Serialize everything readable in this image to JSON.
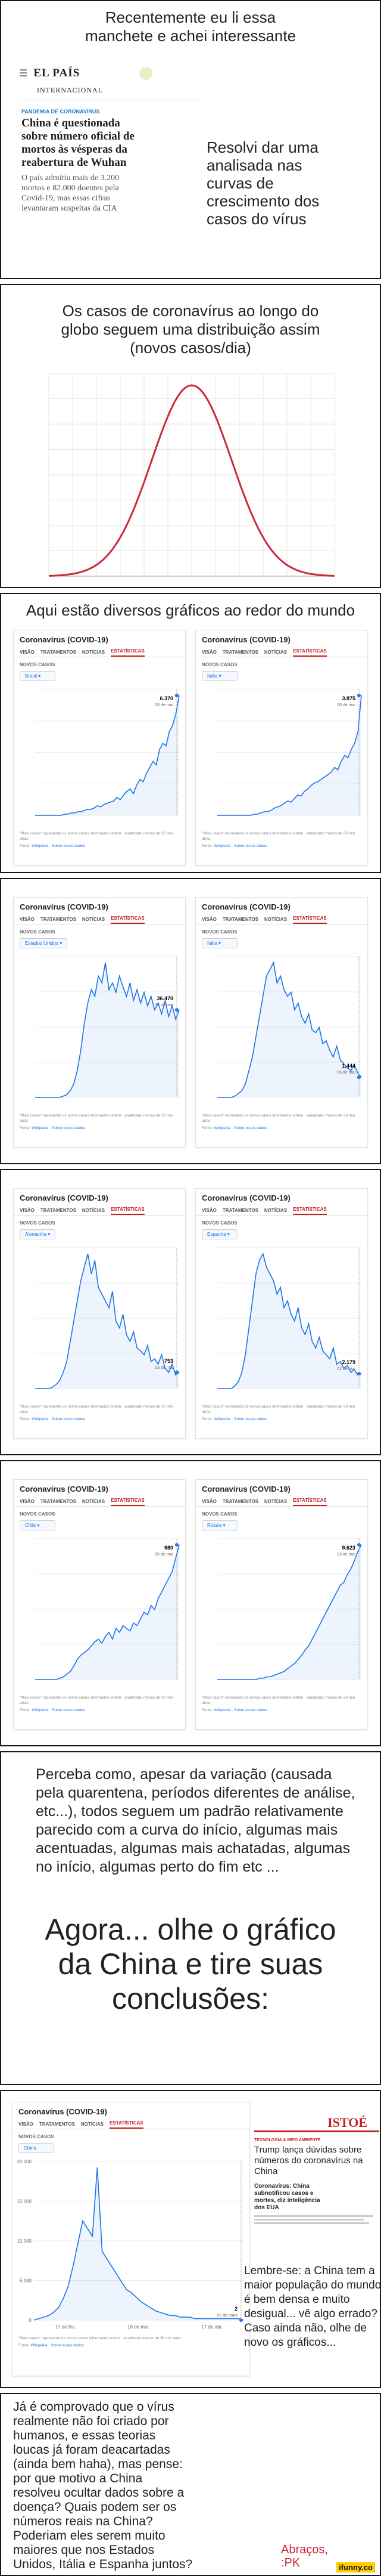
{
  "panel1": {
    "caption_line1": "Recentemente eu li essa",
    "caption_line2": "manchete e achei interessante",
    "logo": "EL PAÍS",
    "edition": "INTERNACIONAL",
    "kicker": "PANDEMIA DE CORONAVÍRUS",
    "headline_lines": [
      "China é questionada",
      "sobre número oficial de",
      "mortos às vésperas da",
      "reabertura de Wuhan"
    ],
    "body_lines": [
      "O país admitiu mais de 3.200",
      "mortos e 82.000 doentes pela",
      "Covid-19, mas essas cifras",
      "levantaram suspeitas da CIA"
    ],
    "aside_lines": [
      "Resolvi dar uma",
      "analisada nas",
      "curvas de",
      "crescimento dos",
      "casos do vírus"
    ]
  },
  "panel2": {
    "caption_lines": [
      "Os casos de coronavírus ao longo do",
      "globo seguem uma distribuição assim",
      "(novos casos/dia)"
    ],
    "chart_data": {
      "type": "line",
      "shape": "bell curve",
      "grid": true
    }
  },
  "panel3": {
    "caption": "Aqui estão diversos gráficos ao redor do mundo"
  },
  "card_common": {
    "title": "Coronavírus (COVID-19)",
    "tabs": [
      "VISÃO",
      "TRATAMENTOS",
      "NOTÍCIAS",
      "ESTATÍSTICAS"
    ],
    "section": "NOVOS CASOS",
    "footnote": "\"Mais casos\" representa os novos casos informados ontem · atualizado menos de 30 min atrás",
    "source_label": "Fonte:",
    "source_link": "Wikipedia",
    "about_link": "Sobre esses dados"
  },
  "cards": [
    {
      "country": "Brasil",
      "annot_value": "6.370",
      "annot_date": "06 de mai",
      "color": "#1a73e8",
      "profile": [
        0,
        0,
        0,
        0,
        0,
        0,
        0,
        0,
        0,
        1,
        1,
        2,
        2,
        3,
        3,
        4,
        5,
        5,
        6,
        8,
        7,
        9,
        10,
        11,
        12,
        15,
        13,
        17,
        20,
        22,
        18,
        25,
        30,
        28,
        35,
        40,
        45,
        42,
        55,
        60,
        58,
        70,
        75,
        85,
        100
      ]
    },
    {
      "country": "Índia",
      "annot_value": "3.875",
      "annot_date": "06 de mai",
      "color": "#1a73e8",
      "profile": [
        0,
        0,
        0,
        0,
        0,
        0,
        0,
        0,
        0,
        0,
        0,
        1,
        1,
        2,
        3,
        3,
        4,
        6,
        7,
        8,
        10,
        12,
        11,
        14,
        17,
        16,
        20,
        22,
        25,
        27,
        28,
        30,
        32,
        34,
        36,
        40,
        38,
        45,
        50,
        48,
        55,
        60,
        70,
        100
      ]
    },
    {
      "country": "Estados Unidos",
      "annot_value": "36.470",
      "annot_date": "22 de mai",
      "color": "#1a73e8",
      "profile": [
        0,
        0,
        0,
        0,
        0,
        0,
        0,
        0,
        1,
        2,
        5,
        10,
        20,
        35,
        55,
        70,
        80,
        75,
        90,
        85,
        100,
        80,
        85,
        78,
        90,
        82,
        75,
        85,
        72,
        80,
        70,
        78,
        68,
        75,
        65,
        70,
        62,
        72,
        60,
        68,
        58,
        65
      ]
    },
    {
      "country": "Itália",
      "annot_value": "1.444",
      "annot_date": "06 de mai",
      "color": "#1a73e8",
      "profile": [
        0,
        0,
        0,
        0,
        0,
        1,
        3,
        5,
        10,
        20,
        30,
        45,
        60,
        75,
        90,
        95,
        100,
        85,
        90,
        80,
        75,
        78,
        65,
        70,
        60,
        55,
        62,
        50,
        48,
        52,
        40,
        42,
        35,
        30,
        38,
        28,
        25,
        22,
        20,
        24,
        18,
        15
      ]
    },
    {
      "country": "Alemanha",
      "annot_value": "753",
      "annot_date": "03 de mai",
      "color": "#1a73e8",
      "profile": [
        0,
        0,
        0,
        0,
        0,
        1,
        3,
        6,
        12,
        20,
        35,
        50,
        65,
        80,
        90,
        100,
        85,
        95,
        75,
        70,
        65,
        60,
        72,
        50,
        45,
        55,
        40,
        35,
        42,
        30,
        28,
        25,
        32,
        20,
        22,
        18,
        25,
        15,
        12,
        18,
        10,
        12
      ]
    },
    {
      "country": "Espanha",
      "annot_value": "2.179",
      "annot_date": "02 de mai",
      "color": "#1a73e8",
      "profile": [
        0,
        0,
        0,
        0,
        0,
        2,
        5,
        12,
        25,
        45,
        65,
        85,
        95,
        100,
        90,
        85,
        80,
        70,
        75,
        60,
        65,
        55,
        50,
        60,
        45,
        40,
        48,
        35,
        30,
        38,
        28,
        25,
        22,
        30,
        18,
        20,
        15,
        17,
        12,
        14,
        10,
        11
      ]
    },
    {
      "country": "Chile",
      "annot_value": "980",
      "annot_date": "06 de mai",
      "color": "#1a73e8",
      "profile": [
        0,
        0,
        0,
        0,
        0,
        0,
        0,
        1,
        2,
        4,
        6,
        10,
        15,
        18,
        20,
        22,
        25,
        28,
        30,
        27,
        32,
        35,
        30,
        38,
        35,
        40,
        38,
        36,
        42,
        40,
        45,
        50,
        48,
        55,
        52,
        60,
        65,
        70,
        75,
        80,
        90,
        100
      ]
    },
    {
      "country": "Rússia",
      "annot_value": "9.623",
      "annot_date": "03 de mai",
      "color": "#1a73e8",
      "profile": [
        0,
        0,
        0,
        0,
        0,
        0,
        0,
        0,
        0,
        0,
        0,
        0,
        1,
        1,
        2,
        2,
        3,
        4,
        5,
        6,
        8,
        10,
        12,
        15,
        18,
        22,
        25,
        30,
        35,
        40,
        45,
        50,
        55,
        60,
        65,
        70,
        72,
        78,
        82,
        88,
        95,
        100
      ]
    }
  ],
  "panel7": {
    "text_lines": [
      "Perceba como, apesar da variação (causada",
      "pela quarentena, períodos diferentes de análise,",
      "etc...), todos seguem um padrão relativamente",
      "parecido com a curva do início, algumas mais",
      "acentuadas, algumas mais achatadas, algumas",
      "no início, algumas perto do fim etc ..."
    ],
    "big_lines": [
      "Agora... olhe o gráfico",
      "da China e tire suas",
      "conclusões:"
    ]
  },
  "panel8": {
    "card": {
      "country": "China",
      "annot_value": "2",
      "annot_date": "02 de maio",
      "color": "#1a73e8",
      "yticks": [
        "20.000",
        "15.000",
        "10.000",
        "5.000",
        "0"
      ],
      "xticks": [
        "17 de fev.",
        "18 de mar.",
        "17 de abr."
      ]
    },
    "istoe": {
      "logo": "ISTOÉ",
      "kicker": "TECNOLOGIA & MEIO AMBIENTE",
      "headline_lines": [
        "Trump lança dúvidas sobre",
        "números do coronavírus na",
        "China"
      ],
      "sub_lines": [
        "Coronavírus: China",
        "subnotificou casos e",
        "mortes, diz inteligência",
        "dos EUA"
      ]
    },
    "note_lines": [
      "Lembre-se: a China tem a",
      "maior população do mundo",
      "é bem densa e muito",
      "desigual... vê algo errado?",
      "Caso ainda não, olhe de",
      "novo os gráficos..."
    ]
  },
  "panel9": {
    "text_lines": [
      "Já é comprovado que o vírus",
      "realmente não foi criado por",
      "humanos, e essas teorias",
      "loucas já foram deacartadas",
      "(ainda bem haha), mas pense:",
      "por que motivo a China",
      "resolveu ocultar dados sobre a",
      "doença? Quais podem ser os",
      "números reais na China?",
      "Poderiam eles serem muito",
      "maiores que nos Estados",
      "Unidos, Itália e Espanha juntos?"
    ],
    "signoff_lines": [
      "Abraços,",
      ":PK"
    ],
    "watermark": "ifunny.co"
  }
}
